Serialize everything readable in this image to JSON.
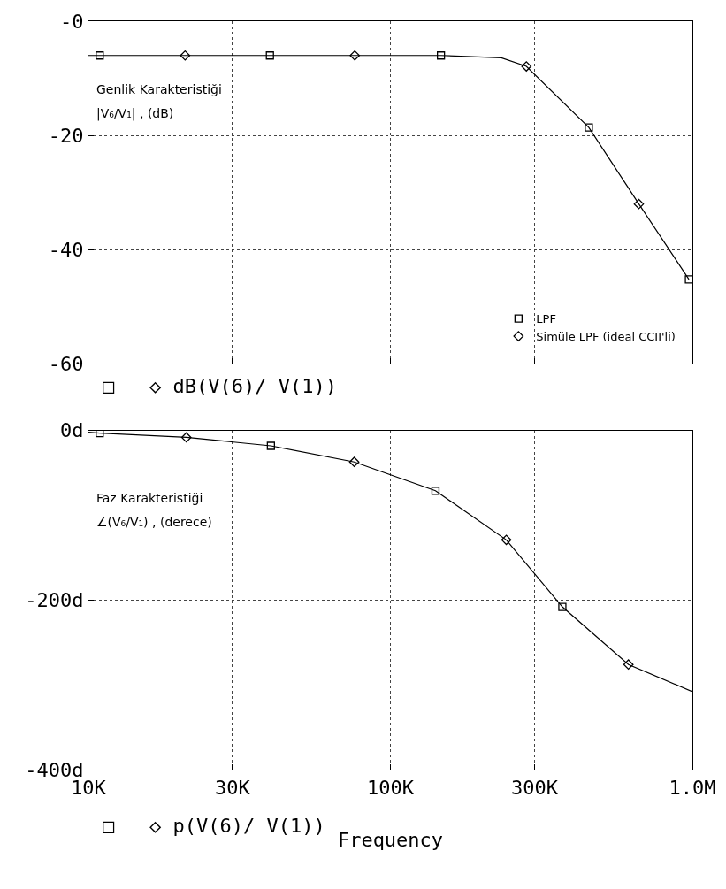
{
  "chart_data": [
    {
      "type": "line",
      "xlim": [
        10000,
        1000000
      ],
      "xticks": [
        {
          "value": 10000,
          "label": null
        },
        {
          "value": 30000,
          "label": null
        },
        {
          "value": 100000,
          "label": null
        },
        {
          "value": 300000,
          "label": null
        },
        {
          "value": 1000000,
          "label": null
        }
      ],
      "log": "x",
      "ylim": [
        -60,
        0
      ],
      "yticks": [
        {
          "value": 0,
          "label": "-0"
        },
        -20,
        -40,
        -60
      ],
      "tick_labels": "y",
      "grid": true,
      "legend": "bottom right",
      "line_style": "solid",
      "series": [
        {
          "color": "#000000",
          "marker": "none",
          "x": [
            10000,
            10900,
            20900,
            39900,
            76200,
            147000,
            233000,
            282000,
            454000,
            665000,
            974000
          ],
          "values": [
            -6.0,
            -6.0,
            -6.0,
            -6.0,
            -6.0,
            -6.0,
            -6.4,
            -7.9,
            -18.6,
            -32.0,
            -45.2
          ]
        },
        {
          "type": "scatter",
          "name": "LPF",
          "color": "#000000",
          "marker": "square",
          "x": [
            10900,
            39900,
            147000,
            454000,
            974000
          ],
          "values": [
            -6.0,
            -6.0,
            -6.0,
            -18.6,
            -45.2
          ]
        },
        {
          "type": "scatter",
          "name": "Simüle LPF (ideal CCII'li)",
          "color": "#000000",
          "marker": "diamond",
          "x": [
            20900,
            76200,
            282000,
            665000
          ],
          "values": [
            -6.0,
            -6.0,
            -7.9,
            -32.0
          ]
        }
      ],
      "annotations": [
        "Genlik Karakteristiği",
        "|V₆/V₁| , (dB)",
        "□   ◇ dB(V(6)/ V(1))"
      ]
    },
    {
      "type": "line",
      "xlim": [
        10000,
        1000000
      ],
      "xticks": [
        {
          "value": 10000,
          "label": "10K"
        },
        {
          "value": 30000,
          "label": "30K"
        },
        {
          "value": 100000,
          "label": "100K"
        },
        {
          "value": 300000,
          "label": "300K"
        },
        {
          "value": 1000000,
          "label": "1.0M"
        }
      ],
      "log": "x",
      "ylim": [
        -400,
        0
      ],
      "yticks": [
        {
          "value": 0,
          "label": "0d"
        },
        {
          "value": -200,
          "label": "-200d"
        },
        {
          "value": -400,
          "label": "-400d"
        }
      ],
      "grid": true,
      "line_style": "solid",
      "xlabel": "Frequency",
      "series": [
        {
          "color": "#000000",
          "marker": "none",
          "x": [
            10000,
            10900,
            21100,
            40200,
            75900,
            141000,
            242000,
            371000,
            614000,
            1000000
          ],
          "values": [
            -2,
            -3,
            -8,
            -18,
            -37,
            -71,
            -129,
            -208,
            -276,
            -308
          ]
        },
        {
          "type": "scatter",
          "color": "#000000",
          "marker": "square",
          "x": [
            10900,
            40200,
            141000,
            371000
          ],
          "values": [
            -3,
            -18,
            -71,
            -208
          ]
        },
        {
          "type": "scatter",
          "color": "#000000",
          "marker": "diamond",
          "x": [
            21100,
            75900,
            242000,
            614000
          ],
          "values": [
            -8,
            -37,
            -129,
            -276
          ]
        }
      ],
      "annotations": [
        "Faz Karakteristiği",
        "∠(V₆/V₁) , (derece)",
        "□   ◇ p(V(6)/ V(1))"
      ]
    }
  ]
}
